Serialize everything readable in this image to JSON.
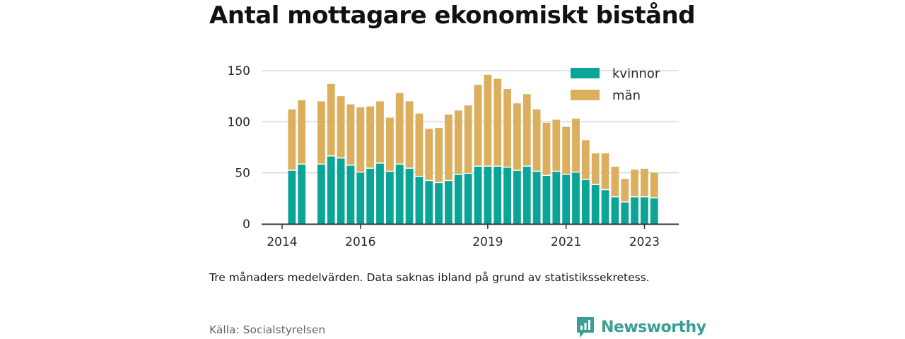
{
  "title": "Antal mottagare ekonomiskt bistånd",
  "note": "Tre månaders medelvärden. Data saknas ibland på grund av statistikssekretess.",
  "source": "Källa: Socialstyrelsen",
  "brand": {
    "name": "Newsworthy",
    "icon": "newsworthy-logo-icon",
    "color": "#3a9e93"
  },
  "chart_data": {
    "type": "bar",
    "stacked": true,
    "grid": true,
    "legend_position": "top-right",
    "ylim": [
      0,
      150
    ],
    "yticks": [
      0,
      50,
      100,
      150
    ],
    "xtick_labels": [
      {
        "label": "2014",
        "index": 0
      },
      {
        "label": "2016",
        "index": 8
      },
      {
        "label": "2019",
        "index": 21
      },
      {
        "label": "2021",
        "index": 29
      },
      {
        "label": "2023",
        "index": 37
      }
    ],
    "series": [
      {
        "name": "kvinnor",
        "color": "#0aa597",
        "values": [
          null,
          52,
          58,
          null,
          58,
          66,
          64,
          57,
          50,
          54,
          59,
          51,
          58,
          54,
          46,
          42,
          40,
          42,
          48,
          49,
          56,
          56,
          56,
          55,
          52,
          56,
          51,
          47,
          51,
          48,
          50,
          43,
          38,
          33,
          26,
          21,
          26,
          26,
          25
        ]
      },
      {
        "name": "män",
        "color": "#dbaf5d",
        "values": [
          null,
          60,
          63,
          null,
          62,
          71,
          61,
          60,
          64,
          61,
          61,
          53,
          70,
          66,
          62,
          51,
          54,
          65,
          63,
          67,
          80,
          90,
          86,
          77,
          66,
          71,
          61,
          52,
          51,
          47,
          53,
          39,
          31,
          36,
          30,
          23,
          27,
          28,
          25
        ]
      }
    ]
  }
}
